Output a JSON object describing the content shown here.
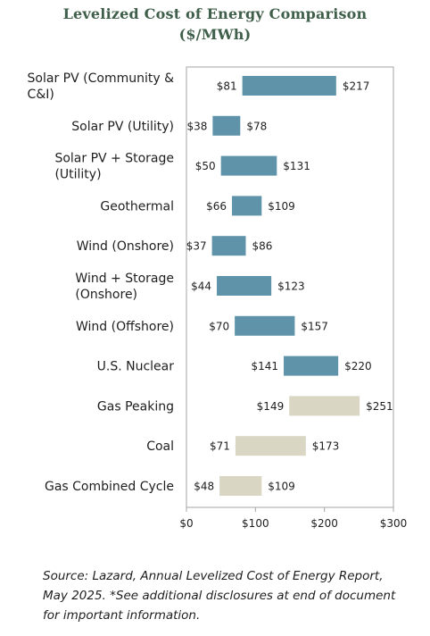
{
  "title_line1": "Levelized Cost of Energy Comparison",
  "title_line2": "($/MWh)",
  "source_note": "Source: Lazard, Annual Levelized Cost of Energy Report, May 2025.  *See additional disclosures at end of document for important information.",
  "colors": {
    "renewable": "#5e93aa",
    "conventional": "#d9d6c4",
    "axis": "#a6a6a6"
  },
  "chart_data": {
    "type": "bar",
    "subtype": "floating-range",
    "title": "Levelized Cost of Energy Comparison ($/MWh)",
    "xlim": [
      0,
      300
    ],
    "xticks": [
      0,
      100,
      200,
      300
    ],
    "xtick_labels": [
      "$0",
      "$100",
      "$200",
      "$300"
    ],
    "grid": false,
    "legend": "none",
    "categories": [
      {
        "label_lines": [
          "Solar PV (Community &",
          "C&I)"
        ],
        "low": 81,
        "high": 217,
        "low_label": "$81",
        "high_label": "$217",
        "group": "renewable"
      },
      {
        "label_lines": [
          "Solar PV (Utility)"
        ],
        "low": 38,
        "high": 78,
        "low_label": "$38",
        "high_label": "$78",
        "group": "renewable"
      },
      {
        "label_lines": [
          "Solar PV + Storage",
          "(Utility)"
        ],
        "low": 50,
        "high": 131,
        "low_label": "$50",
        "high_label": "$131",
        "group": "renewable"
      },
      {
        "label_lines": [
          "Geothermal"
        ],
        "low": 66,
        "high": 109,
        "low_label": "$66",
        "high_label": "$109",
        "group": "renewable"
      },
      {
        "label_lines": [
          "Wind (Onshore)"
        ],
        "low": 37,
        "high": 86,
        "low_label": "$37",
        "high_label": "$86",
        "group": "renewable"
      },
      {
        "label_lines": [
          "Wind + Storage",
          "(Onshore)"
        ],
        "low": 44,
        "high": 123,
        "low_label": "$44",
        "high_label": "$123",
        "group": "renewable"
      },
      {
        "label_lines": [
          "Wind (Offshore)"
        ],
        "low": 70,
        "high": 157,
        "low_label": "$70",
        "high_label": "$157",
        "group": "renewable"
      },
      {
        "label_lines": [
          "U.S. Nuclear"
        ],
        "low": 141,
        "high": 220,
        "low_label": "$141",
        "high_label": "$220",
        "group": "renewable"
      },
      {
        "label_lines": [
          "Gas Peaking"
        ],
        "low": 149,
        "high": 251,
        "low_label": "$149",
        "high_label": "$251",
        "group": "conventional"
      },
      {
        "label_lines": [
          "Coal"
        ],
        "low": 71,
        "high": 173,
        "low_label": "$71",
        "high_label": "$173",
        "group": "conventional"
      },
      {
        "label_lines": [
          "Gas Combined Cycle"
        ],
        "low": 48,
        "high": 109,
        "low_label": "$48",
        "high_label": "$109",
        "group": "conventional"
      }
    ]
  }
}
